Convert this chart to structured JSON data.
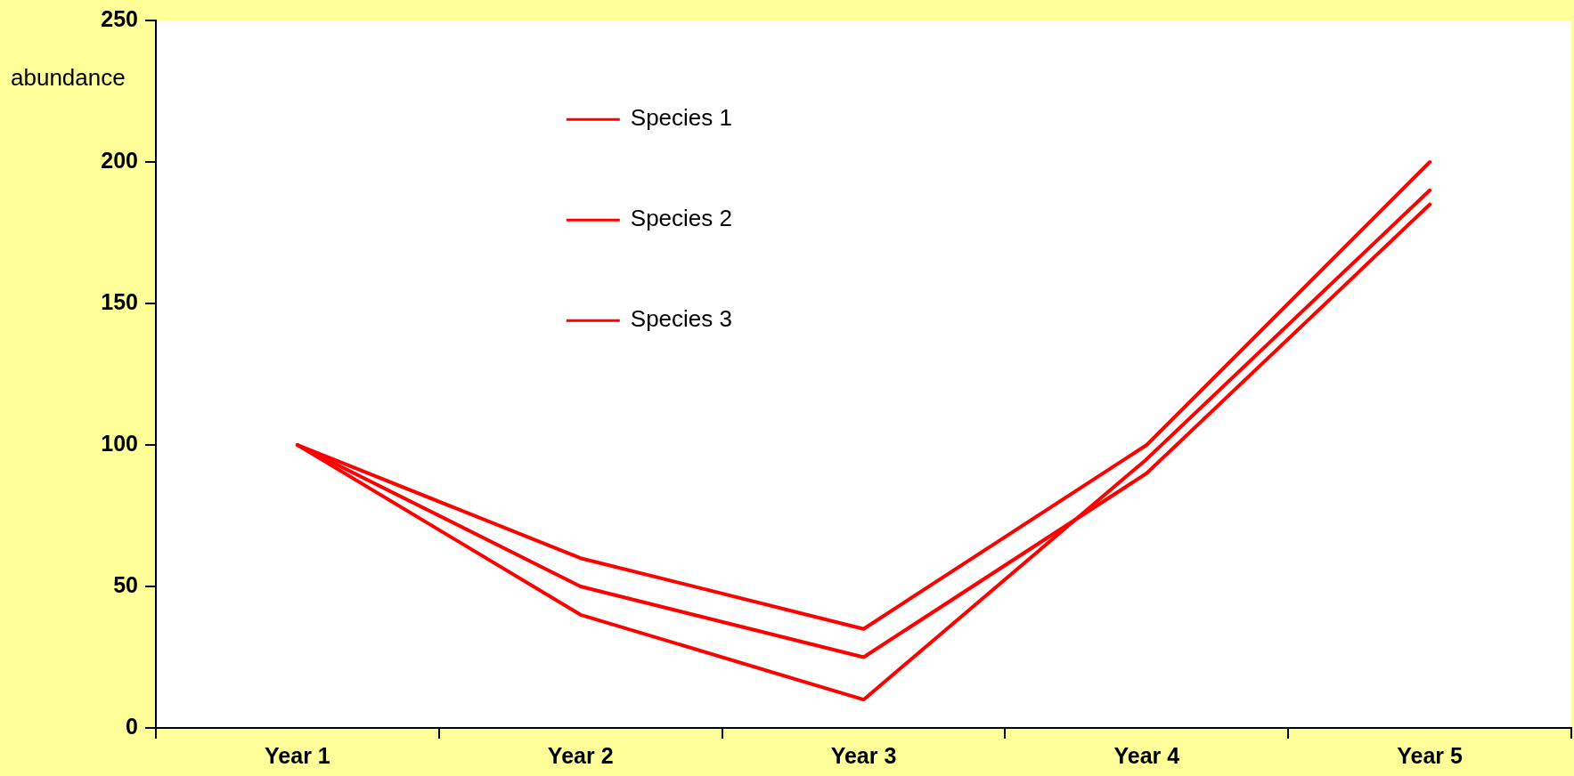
{
  "chart_data": {
    "type": "line",
    "ylabel": "abundance",
    "categories": [
      "Year 1",
      "Year 2",
      "Year 3",
      "Year 4",
      "Year 5"
    ],
    "series": [
      {
        "name": "Species 1",
        "color": "#ff0000",
        "values": [
          100,
          60,
          35,
          100,
          200
        ]
      },
      {
        "name": "Species 2",
        "color": "#ff0000",
        "values": [
          100,
          50,
          25,
          90,
          185
        ]
      },
      {
        "name": "Species 3",
        "color": "#ff0000",
        "values": [
          100,
          40,
          10,
          95,
          190
        ]
      }
    ],
    "ylim": [
      0,
      250
    ],
    "yticks": [
      0,
      50,
      100,
      150,
      200,
      250
    ],
    "grid": false,
    "legend": "top",
    "marker": "none",
    "line_style": "solid"
  }
}
